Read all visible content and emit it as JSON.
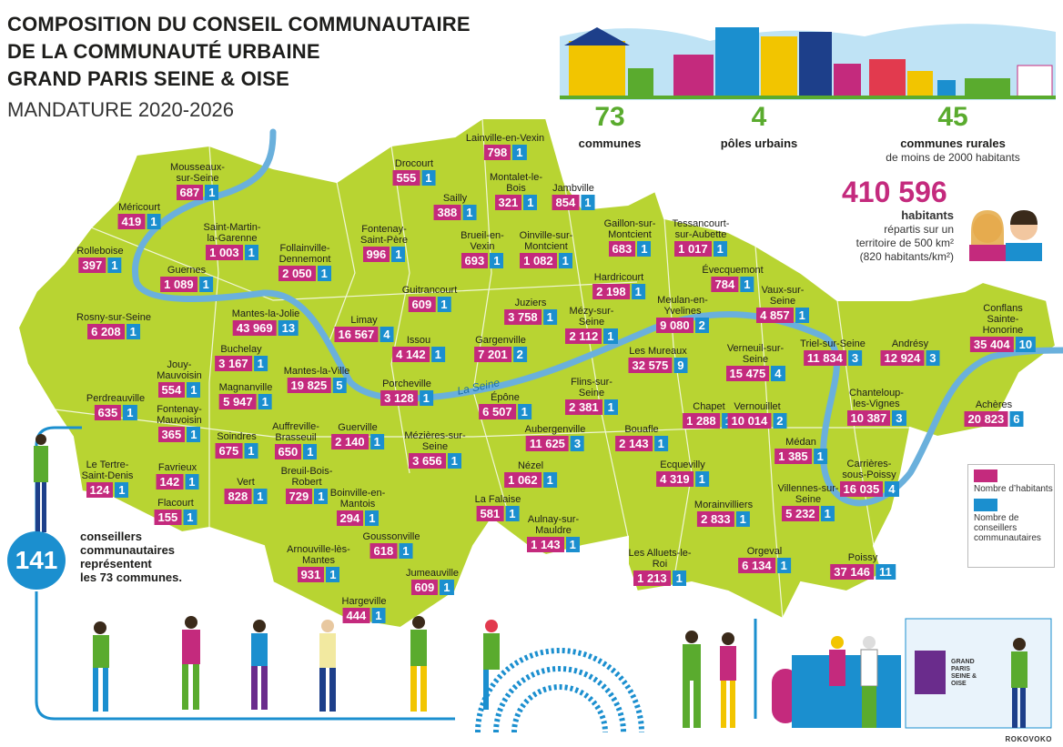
{
  "header": {
    "title_lines": [
      "COMPOSITION DU CONSEIL COMMUNAUTAIRE",
      "DE LA COMMUNAUTÉ URBAINE",
      "GRAND PARIS SEINE & OISE"
    ],
    "subtitle": "MANDATURE 2020-2026"
  },
  "stats": {
    "communes": {
      "value": "73",
      "label": "communes"
    },
    "poles": {
      "value": "4",
      "label": "pôles urbains"
    },
    "rural": {
      "value": "45",
      "label": "communes rurales",
      "note": "de moins de 2000 habitants"
    },
    "population": {
      "value": "410 596",
      "label": "habitants",
      "note_lines": [
        "répartis sur un",
        "territoire de 500 km²",
        "(820 habitants/km²)"
      ]
    }
  },
  "councillors": {
    "value": "141",
    "text_lines": [
      "conseillers",
      "communautaires",
      "représentent",
      "les 73 communes."
    ]
  },
  "legend": {
    "population": "Nombre d’habitants",
    "councillors": "Nombre de conseillers communautaires"
  },
  "river": "La Seine",
  "logo": "GRAND PARIS SEINE & OISE",
  "credit": "ROKOVOKO",
  "communes": [
    {
      "name": "Lainville-en-Vexin",
      "population": "798",
      "councillors": "1"
    },
    {
      "name": "Drocourt",
      "population": "555",
      "councillors": "1"
    },
    {
      "name": "Mousseaux-sur-Seine",
      "population": "687",
      "councillors": "1"
    },
    {
      "name": "Montalet-le-Bois",
      "population": "321",
      "councillors": "1"
    },
    {
      "name": "Jambville",
      "population": "854",
      "councillors": "1"
    },
    {
      "name": "Méricourt",
      "population": "419",
      "councillors": "1"
    },
    {
      "name": "Sailly",
      "population": "388",
      "councillors": "1"
    },
    {
      "name": "Saint-Martin-la-Garenne",
      "population": "1 003",
      "councillors": "1"
    },
    {
      "name": "Fontenay-Saint-Père",
      "population": "996",
      "councillors": "1"
    },
    {
      "name": "Gaillon-sur-Montcient",
      "population": "683",
      "councillors": "1"
    },
    {
      "name": "Tessancourt-sur-Aubette",
      "population": "1 017",
      "councillors": "1"
    },
    {
      "name": "Brueil-en-Vexin",
      "population": "693",
      "councillors": "1"
    },
    {
      "name": "Oinville-sur-Montcient",
      "population": "1 082",
      "councillors": "1"
    },
    {
      "name": "Follainville-Dennemont",
      "population": "2 050",
      "councillors": "1"
    },
    {
      "name": "Rolleboise",
      "population": "397",
      "councillors": "1"
    },
    {
      "name": "Guernes",
      "population": "1 089",
      "councillors": "1"
    },
    {
      "name": "Évecquemont",
      "population": "784",
      "councillors": "1"
    },
    {
      "name": "Hardricourt",
      "population": "2 198",
      "councillors": "1"
    },
    {
      "name": "Guitrancourt",
      "population": "609",
      "councillors": "1"
    },
    {
      "name": "Vaux-sur-Seine",
      "population": "4 857",
      "councillors": "1"
    },
    {
      "name": "Juziers",
      "population": "3 758",
      "councillors": "1"
    },
    {
      "name": "Meulan-en-Yvelines",
      "population": "9 080",
      "councillors": "2"
    },
    {
      "name": "Mantes-la-Jolie",
      "population": "43 969",
      "councillors": "13"
    },
    {
      "name": "Mézy-sur-Seine",
      "population": "2 112",
      "councillors": "1"
    },
    {
      "name": "Rosny-sur-Seine",
      "population": "6 208",
      "councillors": "1"
    },
    {
      "name": "Limay",
      "population": "16 567",
      "councillors": "4"
    },
    {
      "name": "Conflans Sainte-Honorine",
      "population": "35 404",
      "councillors": "10"
    },
    {
      "name": "Issou",
      "population": "4 142",
      "councillors": "1"
    },
    {
      "name": "Gargenville",
      "population": "7 201",
      "councillors": "2"
    },
    {
      "name": "Buchelay",
      "population": "3 167",
      "councillors": "1"
    },
    {
      "name": "Triel-sur-Seine",
      "population": "11 834",
      "councillors": "3"
    },
    {
      "name": "Andrésy",
      "population": "12 924",
      "councillors": "3"
    },
    {
      "name": "Verneuil-sur-Seine",
      "population": "15 475",
      "councillors": "4"
    },
    {
      "name": "Les Mureaux",
      "population": "32 575",
      "councillors": "9"
    },
    {
      "name": "Jouy-Mauvoisin",
      "population": "554",
      "councillors": "1"
    },
    {
      "name": "Mantes-la-Ville",
      "population": "19 825",
      "councillors": "5"
    },
    {
      "name": "Magnanville",
      "population": "5 947",
      "councillors": "1"
    },
    {
      "name": "Perdreauville",
      "population": "635",
      "councillors": "1"
    },
    {
      "name": "Porcheville",
      "population": "3 128",
      "councillors": "1"
    },
    {
      "name": "Flins-sur-Seine",
      "population": "2 381",
      "councillors": "1"
    },
    {
      "name": "Chanteloup-les-Vignes",
      "population": "10 387",
      "councillors": "3"
    },
    {
      "name": "Achères",
      "population": "20 823",
      "councillors": "6"
    },
    {
      "name": "Fontenay-Mauvoisin",
      "population": "365",
      "councillors": "1"
    },
    {
      "name": "Épône",
      "population": "6 507",
      "councillors": "1"
    },
    {
      "name": "Chapet",
      "population": "1 288",
      "councillors": "1"
    },
    {
      "name": "Vernouillet",
      "population": "10 014",
      "councillors": "2"
    },
    {
      "name": "Mézières-sur-Seine",
      "population": "3 656",
      "councillors": "1"
    },
    {
      "name": "Aubergenville",
      "population": "11 625",
      "councillors": "3"
    },
    {
      "name": "Bouafle",
      "population": "2 143",
      "councillors": "1"
    },
    {
      "name": "Guerville",
      "population": "2 140",
      "councillors": "1"
    },
    {
      "name": "Soindres",
      "population": "675",
      "councillors": "1"
    },
    {
      "name": "Auffreville-Brasseuil",
      "population": "650",
      "councillors": "1"
    },
    {
      "name": "Médan",
      "population": "1 385",
      "councillors": "1"
    },
    {
      "name": "Le Tertre-Saint-Denis",
      "population": "124",
      "councillors": "1"
    },
    {
      "name": "Favrieux",
      "population": "142",
      "councillors": "1"
    },
    {
      "name": "Nézel",
      "population": "1 062",
      "councillors": "1"
    },
    {
      "name": "Ecquevilly",
      "population": "4 319",
      "councillors": "1"
    },
    {
      "name": "Carrières-sous-Poissy",
      "population": "16 035",
      "councillors": "4"
    },
    {
      "name": "Vert",
      "population": "828",
      "councillors": "1"
    },
    {
      "name": "Breuil-Bois-Robert",
      "population": "729",
      "councillors": "1"
    },
    {
      "name": "Villennes-sur-Seine",
      "population": "5 232",
      "councillors": "1"
    },
    {
      "name": "Flacourt",
      "population": "155",
      "councillors": "1"
    },
    {
      "name": "La Falaise",
      "population": "581",
      "councillors": "1"
    },
    {
      "name": "Boinville-en-Mantois",
      "population": "294",
      "councillors": "1"
    },
    {
      "name": "Morainvilliers",
      "population": "2 833",
      "councillors": "1"
    },
    {
      "name": "Aulnay-sur-Mauldre",
      "population": "1 143",
      "councillors": "1"
    },
    {
      "name": "Les Alluets-le-Roi",
      "population": "1 213",
      "councillors": "1"
    },
    {
      "name": "Orgeval",
      "population": "6 134",
      "councillors": "1"
    },
    {
      "name": "Poissy",
      "population": "37 146",
      "councillors": "11"
    },
    {
      "name": "Arnouville-lès-Mantes",
      "population": "931",
      "councillors": "1"
    },
    {
      "name": "Goussonville",
      "population": "618",
      "councillors": "1"
    },
    {
      "name": "Jumeauville",
      "population": "609",
      "councillors": "1"
    },
    {
      "name": "Hargeville",
      "population": "444",
      "councillors": "1"
    }
  ]
}
